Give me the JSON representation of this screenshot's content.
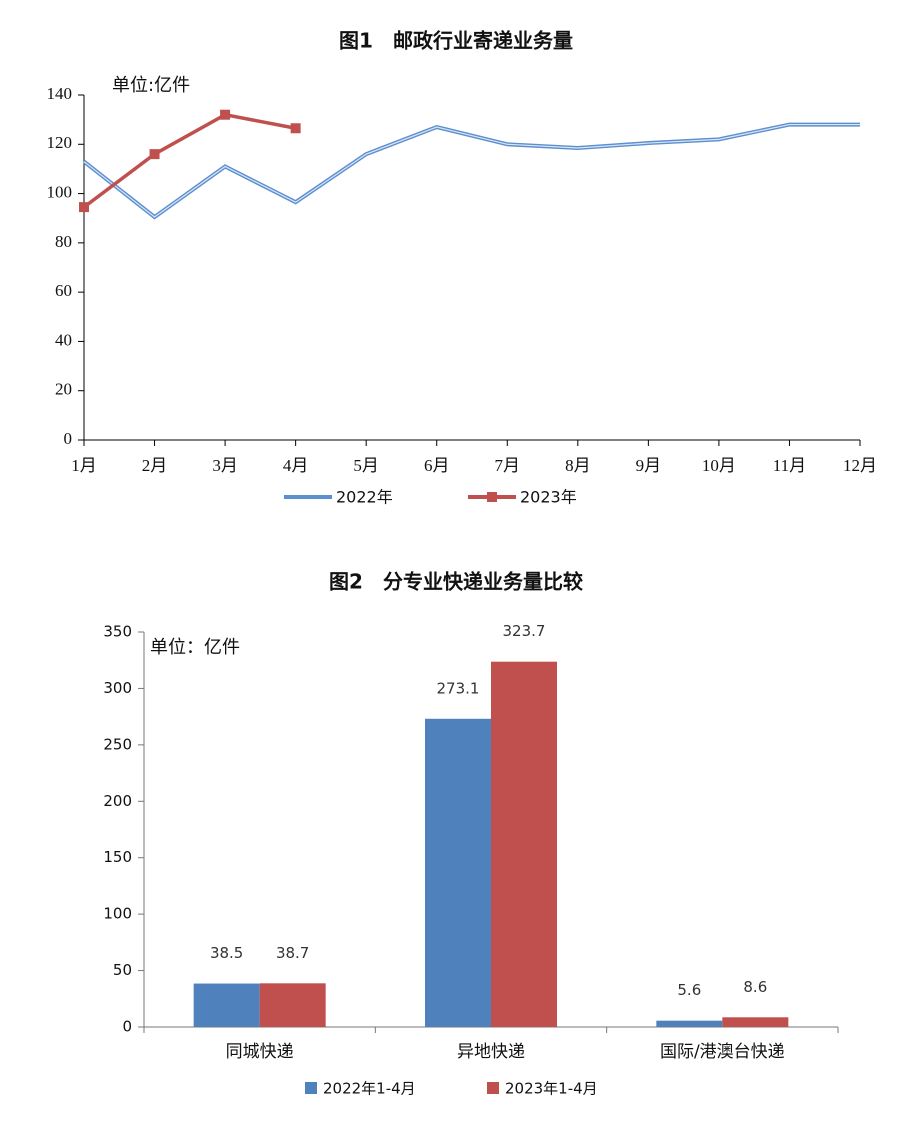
{
  "chart_data": [
    {
      "type": "line",
      "title": "图1　邮政行业寄递业务量",
      "annotation": "单位:亿件",
      "categories": [
        "1月",
        "2月",
        "3月",
        "4月",
        "5月",
        "6月",
        "7月",
        "8月",
        "9月",
        "10月",
        "11月",
        "12月"
      ],
      "series": [
        {
          "name": "2022年",
          "color": "#5b8fd0",
          "values": [
            113,
            90.5,
            111,
            96.5,
            116,
            127,
            120,
            118.5,
            120.5,
            122,
            128,
            128
          ]
        },
        {
          "name": "2023年",
          "color": "#c0504d",
          "values": [
            94.5,
            116,
            132,
            126.5,
            null,
            null,
            null,
            null,
            null,
            null,
            null,
            null
          ]
        }
      ],
      "ylim": [
        0,
        140
      ],
      "yticks": [
        0,
        20,
        40,
        60,
        80,
        100,
        120,
        140
      ]
    },
    {
      "type": "bar",
      "title": "图2　分专业快递业务量比较",
      "annotation": "单位：亿件",
      "categories": [
        "同城快递",
        "异地快递",
        "国际/港澳台快递"
      ],
      "series": [
        {
          "name": "2022年1-4月",
          "color": "#4f81bd",
          "values": [
            38.5,
            273.1,
            5.6
          ]
        },
        {
          "name": "2023年1-4月",
          "color": "#c0504d",
          "values": [
            38.7,
            323.7,
            8.6
          ]
        }
      ],
      "ylim": [
        0,
        350
      ],
      "yticks": [
        0,
        50,
        100,
        150,
        200,
        250,
        300,
        350
      ]
    }
  ]
}
